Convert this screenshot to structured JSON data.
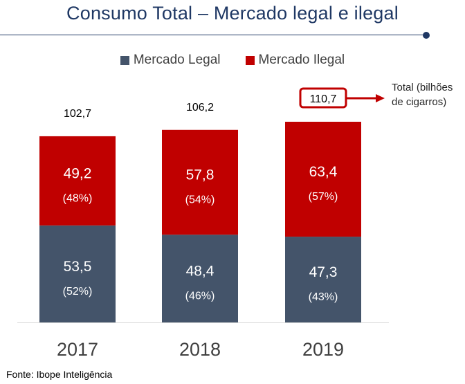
{
  "title": "Consumo Total – Mercado legal e ilegal",
  "source": "Fonte: Ibope Inteligência",
  "annotation": "Total (bilhões de cigarros)",
  "colors": {
    "legal": "#44546a",
    "illegal": "#c00000",
    "title": "#1f3864"
  },
  "chart_data": {
    "type": "bar",
    "stacked": true,
    "categories": [
      "2017",
      "2018",
      "2019"
    ],
    "series": [
      {
        "name": "Mercado Legal",
        "values": [
          53.5,
          48.4,
          47.3
        ],
        "labels": [
          "53,5",
          "48,4",
          "47,3"
        ],
        "pct_labels": [
          "(52%)",
          "(46%)",
          "(43%)"
        ]
      },
      {
        "name": "Mercado Ilegal",
        "values": [
          49.2,
          57.8,
          63.4
        ],
        "labels": [
          "49,2",
          "57,8",
          "63,4"
        ],
        "pct_labels": [
          "(48%)",
          "(54%)",
          "(57%)"
        ]
      }
    ],
    "totals": [
      102.7,
      106.2,
      110.7
    ],
    "total_labels": [
      "102,7",
      "106,2",
      "110,7"
    ],
    "highlighted_total": "2019",
    "legend_position": "top",
    "grid": false
  }
}
